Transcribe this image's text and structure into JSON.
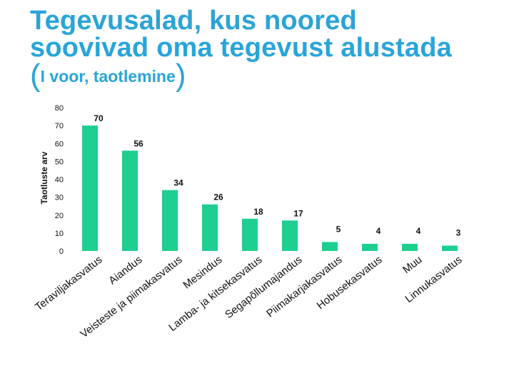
{
  "title": {
    "line1": "Tegevusalad, kus noored",
    "line2": "soovivad oma tegevust alustada",
    "paren_open": "(",
    "subtitle": "I voor, taotlemine",
    "paren_close": ")"
  },
  "chart_data": {
    "type": "bar",
    "title": "Tegevusalad, kus noored soovivad oma tegevust alustada (I voor, taotlemine)",
    "xlabel": "",
    "ylabel": "Taotluste arv",
    "ylim": [
      0,
      80
    ],
    "yticks": [
      0,
      10,
      20,
      30,
      40,
      50,
      60,
      70,
      80
    ],
    "grid": false,
    "legend": "none",
    "bar_color": "#1ecf8f",
    "categories": [
      "Teraviljakasvatus",
      "Aiandus",
      "Veisteste ja piimakasvatus",
      "Mesindus",
      "Lamba- ja kitsekasvatus",
      "Segapõllumajandus",
      "Piimakarjakasvatus",
      "Hobusekasvatus",
      "Muu",
      "Linnukasvatus"
    ],
    "values": [
      70,
      56,
      34,
      26,
      18,
      17,
      5,
      4,
      4,
      3
    ]
  }
}
